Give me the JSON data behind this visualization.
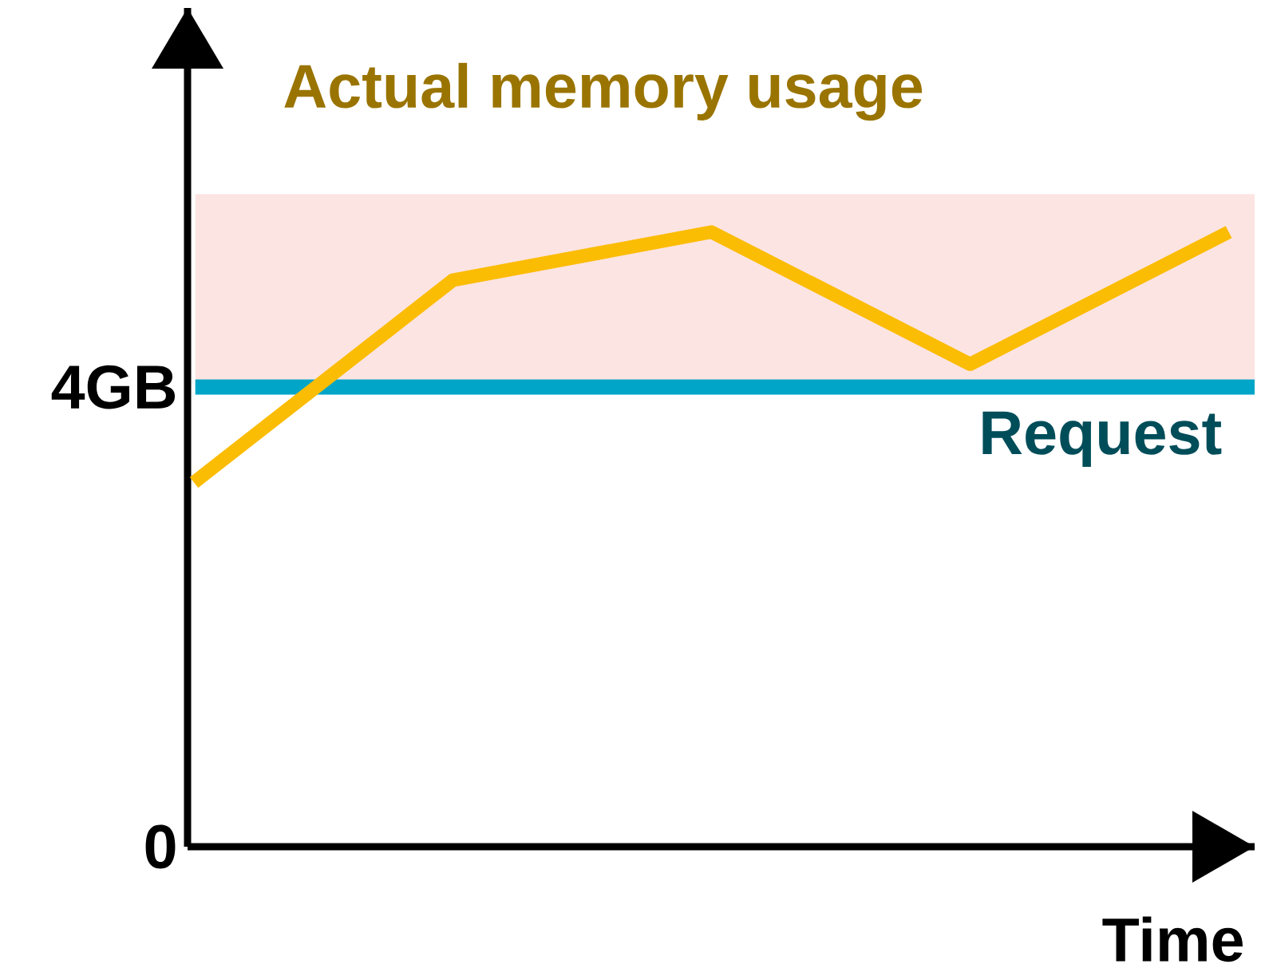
{
  "chart_data": {
    "type": "line",
    "title": "Actual memory usage",
    "xlabel": "Time",
    "categories": [
      null,
      null,
      null,
      null,
      null
    ],
    "series": [
      {
        "color": "#fbbc04",
        "values": [
          3.17,
          4.93,
          5.35,
          4.2,
          5.35
        ]
      }
    ],
    "ylim": [
      0,
      7.3
    ],
    "yticks": [
      0,
      {
        "value": 4,
        "label": "4GB"
      }
    ],
    "ref_lines": [
      {
        "axis": "y",
        "value": 4,
        "label": "Request",
        "color": "#00a5c8"
      }
    ],
    "bands": [
      {
        "axis": "y",
        "from": 4,
        "to": 5.68,
        "color": "#fce4e2"
      }
    ],
    "grid": false,
    "marker": "none",
    "line_style": "solid"
  }
}
